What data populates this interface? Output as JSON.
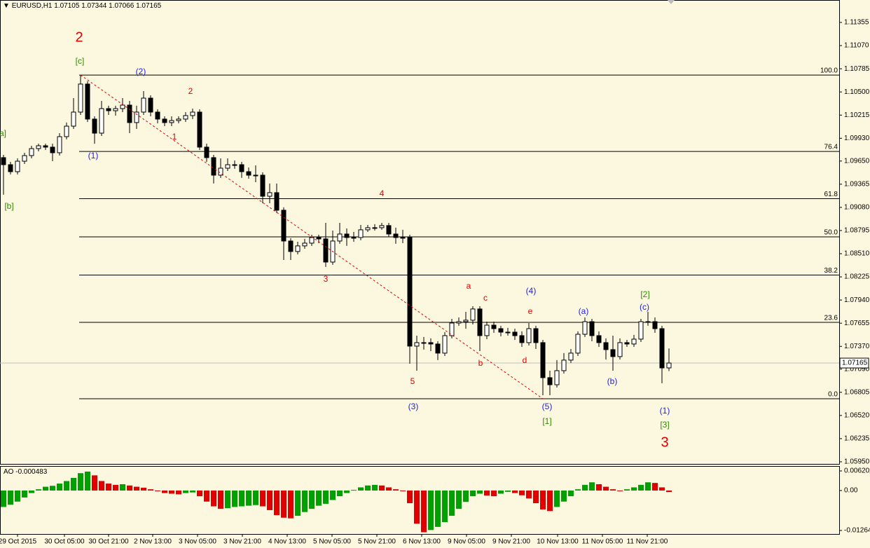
{
  "chart_data": [
    {
      "type": "candlestick",
      "title": "EURUSD,H1",
      "candles": [
        [
          1.09692,
          1.09726,
          1.09235,
          1.09605
        ],
        [
          1.09605,
          1.0964,
          1.09485,
          1.09519
        ],
        [
          1.09519,
          1.09683,
          1.09485,
          1.09648
        ],
        [
          1.09648,
          1.09752,
          1.09614,
          1.09717
        ],
        [
          1.09717,
          1.09838,
          1.09683,
          1.09803
        ],
        [
          1.09803,
          1.09864,
          1.09769,
          1.09838
        ],
        [
          1.09838,
          1.09864,
          1.09786,
          1.09821
        ],
        [
          1.09821,
          1.09864,
          1.09648,
          1.09752
        ],
        [
          1.09752,
          1.09993,
          1.09717,
          1.0995
        ],
        [
          1.0995,
          1.10123,
          1.09916,
          1.10079
        ],
        [
          1.10079,
          1.10424,
          1.10045,
          1.10252
        ],
        [
          1.10252,
          1.10709,
          1.10217,
          1.10597
        ],
        [
          1.10597,
          1.10631,
          1.10131,
          1.10166
        ],
        [
          1.10166,
          1.102,
          1.09864,
          1.09993
        ],
        [
          1.09993,
          1.1039,
          1.09959,
          1.10295
        ],
        [
          1.10295,
          1.1033,
          1.10217,
          1.10269
        ],
        [
          1.10269,
          1.1033,
          1.10209,
          1.10295
        ],
        [
          1.10295,
          1.10424,
          1.10252,
          1.10338
        ],
        [
          1.10338,
          1.1039,
          1.09993,
          1.10123
        ],
        [
          1.10123,
          1.1033,
          1.10045,
          1.10252
        ],
        [
          1.10252,
          1.1051,
          1.10217,
          1.10424
        ],
        [
          1.10424,
          1.10459,
          1.102,
          1.10252
        ],
        [
          1.10252,
          1.10286,
          1.10114,
          1.10166
        ],
        [
          1.10166,
          1.102,
          1.10079,
          1.10123
        ],
        [
          1.10123,
          1.102,
          1.10079,
          1.10148
        ],
        [
          1.10148,
          1.102,
          1.10114,
          1.10166
        ],
        [
          1.10166,
          1.10252,
          1.10131,
          1.10209
        ],
        [
          1.10209,
          1.10295,
          1.10166,
          1.10252
        ],
        [
          1.10252,
          1.10286,
          1.09786,
          1.09821
        ],
        [
          1.09821,
          1.09864,
          1.0964,
          1.09692
        ],
        [
          1.09692,
          1.09726,
          1.09373,
          1.09476
        ],
        [
          1.09476,
          1.09683,
          1.09442,
          1.09562
        ],
        [
          1.09562,
          1.09683,
          1.09528,
          1.09605
        ],
        [
          1.09605,
          1.09657,
          1.09554,
          1.09605
        ],
        [
          1.09605,
          1.0964,
          1.09442,
          1.09519
        ],
        [
          1.09519,
          1.09571,
          1.09433,
          1.09476
        ],
        [
          1.09476,
          1.09597,
          1.0939,
          1.09476
        ],
        [
          1.09476,
          1.09511,
          1.09131,
          1.09217
        ],
        [
          1.09217,
          1.09373,
          1.09131,
          1.09261
        ],
        [
          1.09261,
          1.09373,
          1.09011,
          1.09045
        ],
        [
          1.09045,
          1.0908,
          1.08433,
          1.08666
        ],
        [
          1.08666,
          1.087,
          1.08433,
          1.08537
        ],
        [
          1.08537,
          1.08657,
          1.08502,
          1.08606
        ],
        [
          1.08606,
          1.08692,
          1.08571,
          1.0864
        ],
        [
          1.0864,
          1.08743,
          1.08606,
          1.08709
        ],
        [
          1.08709,
          1.08743,
          1.0864,
          1.08692
        ],
        [
          1.08692,
          1.0889,
          1.08347,
          1.08407
        ],
        [
          1.08407,
          1.08795,
          1.08373,
          1.08666
        ],
        [
          1.08666,
          1.0889,
          1.08632,
          1.08752
        ],
        [
          1.08752,
          1.08821,
          1.08606,
          1.08709
        ],
        [
          1.08709,
          1.08778,
          1.08657,
          1.08709
        ],
        [
          1.08709,
          1.08864,
          1.08675,
          1.08804
        ],
        [
          1.08804,
          1.08864,
          1.08778,
          1.0883
        ],
        [
          1.0883,
          1.08873,
          1.08795,
          1.0883
        ],
        [
          1.0883,
          1.0889,
          1.08804,
          1.08856
        ],
        [
          1.08856,
          1.0889,
          1.08718,
          1.08752
        ],
        [
          1.08752,
          1.0883,
          1.08632,
          1.08709
        ],
        [
          1.08709,
          1.08804,
          1.0864,
          1.08709
        ],
        [
          1.08709,
          1.08743,
          1.07157,
          1.07373
        ],
        [
          1.07373,
          1.07502,
          1.07071,
          1.07416
        ],
        [
          1.07416,
          1.07485,
          1.0733,
          1.07416
        ],
        [
          1.07416,
          1.07468,
          1.07312,
          1.07399
        ],
        [
          1.07399,
          1.07433,
          1.07201,
          1.07287
        ],
        [
          1.07287,
          1.07545,
          1.07252,
          1.07502
        ],
        [
          1.07502,
          1.07709,
          1.07468,
          1.07657
        ],
        [
          1.07657,
          1.07726,
          1.07623,
          1.07674
        ],
        [
          1.07674,
          1.07795,
          1.07588,
          1.07692
        ],
        [
          1.07692,
          1.07864,
          1.0764,
          1.0783
        ],
        [
          1.0783,
          1.07864,
          1.07312,
          1.07502
        ],
        [
          1.07502,
          1.07674,
          1.07459,
          1.07631
        ],
        [
          1.07631,
          1.07674,
          1.07537,
          1.07588
        ],
        [
          1.07588,
          1.07623,
          1.07493,
          1.07545
        ],
        [
          1.07545,
          1.07597,
          1.07502,
          1.07545
        ],
        [
          1.07545,
          1.07588,
          1.0745,
          1.07502
        ],
        [
          1.07502,
          1.07554,
          1.07364,
          1.07416
        ],
        [
          1.07416,
          1.07657,
          1.07381,
          1.07588
        ],
        [
          1.07588,
          1.07623,
          1.07338,
          1.07416
        ],
        [
          1.07416,
          1.0745,
          1.06769,
          1.06985
        ],
        [
          1.06985,
          1.07071,
          1.06769,
          1.06898
        ],
        [
          1.06898,
          1.07201,
          1.06864,
          1.07071
        ],
        [
          1.07071,
          1.07287,
          1.07036,
          1.07201
        ],
        [
          1.07201,
          1.07338,
          1.07166,
          1.07287
        ],
        [
          1.07287,
          1.07554,
          1.07252,
          1.07519
        ],
        [
          1.07519,
          1.07726,
          1.07485,
          1.07674
        ],
        [
          1.07674,
          1.07709,
          1.07433,
          1.07502
        ],
        [
          1.07502,
          1.07554,
          1.07364,
          1.07416
        ],
        [
          1.07416,
          1.07468,
          1.07209,
          1.0733
        ],
        [
          1.0733,
          1.07502,
          1.07071,
          1.07244
        ],
        [
          1.07244,
          1.07468,
          1.07209,
          1.07416
        ],
        [
          1.07416,
          1.0745,
          1.07364,
          1.07399
        ],
        [
          1.07399,
          1.07511,
          1.07364,
          1.07459
        ],
        [
          1.07459,
          1.07709,
          1.07424,
          1.07674
        ],
        [
          1.07674,
          1.07795,
          1.07623,
          1.07674
        ],
        [
          1.07674,
          1.07726,
          1.07537,
          1.07588
        ],
        [
          1.07588,
          1.07623,
          1.06916,
          1.07105
        ],
        [
          1.07105,
          1.07344,
          1.07066,
          1.07165
        ]
      ],
      "xlim": [
        -0.5,
        119.3
      ],
      "xticks": [
        {
          "value": 2,
          "label": "29 Oct 2015"
        },
        {
          "value": 8.7,
          "label": "30 Oct 05:00"
        },
        {
          "value": 15,
          "label": "30 Oct 21:00"
        },
        {
          "value": 21.3,
          "label": "2 Nov 13:00"
        },
        {
          "value": 27.7,
          "label": "3 Nov 05:00"
        },
        {
          "value": 34.1,
          "label": "3 Nov 21:00"
        },
        {
          "value": 40.5,
          "label": "4 Nov 13:00"
        },
        {
          "value": 46.9,
          "label": "5 Nov 05:00"
        },
        {
          "value": 53.3,
          "label": "5 Nov 21:00"
        },
        {
          "value": 59.7,
          "label": "6 Nov 13:00"
        },
        {
          "value": 66.1,
          "label": "9 Nov 05:00"
        },
        {
          "value": 72.5,
          "label": "9 Nov 21:00"
        },
        {
          "value": 79.1,
          "label": "10 Nov 13:00"
        },
        {
          "value": 85.5,
          "label": "11 Nov 05:00"
        },
        {
          "value": 91.9,
          "label": "11 Nov 21:00"
        }
      ],
      "ylim": [
        1.05924,
        1.11631
      ],
      "yticks": [
        1.11355,
        {
          "value": 1.1107,
          "label": "1.11070"
        },
        1.10785,
        {
          "value": 1.105,
          "label": "1.10500"
        },
        1.10215,
        {
          "value": 1.0993,
          "label": "1.09930"
        },
        {
          "value": 1.0965,
          "label": "1.09650"
        },
        1.09365,
        {
          "value": 1.0908,
          "label": "1.09080"
        },
        1.08795,
        {
          "value": 1.0851,
          "label": "1.08510"
        },
        1.08225,
        {
          "value": 1.0794,
          "label": "1.07940"
        },
        1.07655,
        {
          "value": 1.0737,
          "label": "1.07370"
        },
        {
          "value": 1.0709,
          "label": "1.07090"
        },
        1.06805,
        {
          "value": 1.0652,
          "label": "1.06520"
        },
        1.06235,
        {
          "value": 1.0595,
          "label": "1.05950"
        }
      ],
      "up_color": "#ffffff",
      "down_color": "#000000",
      "fib": {
        "high": 1.10708,
        "low": 1.06726,
        "levels": [
          100,
          76.4,
          61.8,
          50,
          38.2,
          23.6,
          0
        ],
        "level_labels": [
          "100.0",
          "76.4",
          "61.8",
          "50.0",
          "38.2",
          "23.6",
          "0.0"
        ],
        "color": "#e00000"
      },
      "annotations": [
        {
          "text": "2",
          "color": "#e00000"
        },
        {
          "text": "[c]",
          "color": "#2e8b00"
        },
        {
          "text": "(2)",
          "color": "#2020e0"
        },
        {
          "text": "2",
          "color": "#e00000"
        },
        {
          "text": "a]",
          "color": "#2e8b00"
        },
        {
          "text": "(1)",
          "color": "#2020e0"
        },
        {
          "text": "1",
          "color": "#e00000"
        },
        {
          "text": "[b]",
          "color": "#2e8b00"
        },
        {
          "text": "4",
          "color": "#e00000"
        },
        {
          "text": "3",
          "color": "#e00000"
        },
        {
          "text": "a",
          "color": "#e00000"
        },
        {
          "text": "c",
          "color": "#e00000"
        },
        {
          "text": "(4)",
          "color": "#2020e0"
        },
        {
          "text": "e",
          "color": "#e00000"
        },
        {
          "text": "b",
          "color": "#e00000"
        },
        {
          "text": "d",
          "color": "#e00000"
        },
        {
          "text": "5",
          "color": "#e00000"
        },
        {
          "text": "(3)",
          "color": "#2020e0"
        },
        {
          "text": "(5)",
          "color": "#2020e0"
        },
        {
          "text": "[1]",
          "color": "#2e8b00"
        },
        {
          "text": "(a)",
          "color": "#2020e0"
        },
        {
          "text": "(b)",
          "color": "#2020e0"
        },
        {
          "text": "[2]",
          "color": "#2e8b00"
        },
        {
          "text": "(c)",
          "color": "#2020e0"
        },
        {
          "text": "(1)",
          "color": "#2020e0"
        },
        {
          "text": "[3]",
          "color": "#2e8b00"
        },
        {
          "text": "3",
          "color": "#e00000"
        }
      ]
    },
    {
      "type": "bar",
      "title": "AO",
      "values": [
        -0.0052,
        -0.0045,
        -0.0035,
        -0.0022,
        -0.0008,
        0.0004,
        0.0012,
        0.0015,
        0.0022,
        0.003,
        0.004,
        0.0055,
        0.006,
        0.0048,
        0.003,
        0.0022,
        0.0018,
        0.002,
        0.0016,
        0.0012,
        0.0009,
        0.0004,
        -0.0002,
        -0.0008,
        -0.001,
        -0.0012,
        -0.0008,
        -0.0006,
        -0.0018,
        -0.0035,
        -0.005,
        -0.0058,
        -0.0056,
        -0.0052,
        -0.005,
        -0.0048,
        -0.0046,
        -0.005,
        -0.0062,
        -0.0078,
        -0.0086,
        -0.0088,
        -0.008,
        -0.0068,
        -0.0058,
        -0.0048,
        -0.0042,
        -0.003,
        -0.0018,
        -0.0008,
        0.0002,
        0.001,
        0.0016,
        0.0018,
        0.0016,
        0.001,
        0.0004,
        -0.0002,
        -0.004,
        -0.0105,
        -0.0132,
        -0.0125,
        -0.0115,
        -0.01,
        -0.008,
        -0.0058,
        -0.0036,
        -0.0018,
        -0.001,
        -0.0016,
        -0.0018,
        -0.001,
        -0.0004,
        -0.0008,
        -0.0015,
        -0.0025,
        -0.004,
        -0.006,
        -0.0065,
        -0.0052,
        -0.0035,
        -0.0018,
        0.0004,
        0.0018,
        0.0026,
        0.002,
        0.0012,
        0.0004,
        -0.0001,
        0.0004,
        0.001,
        0.0018,
        0.0026,
        0.0024,
        0.001,
        -0.000483
      ],
      "ylim": [
        -0.01375,
        0.00776
      ],
      "yticks": [
        0.006202,
        {
          "value": 0,
          "label": "0.00"
        },
        -0.012645
      ],
      "up_color": "#00a000",
      "down_color": "#e00000"
    }
  ]
}
